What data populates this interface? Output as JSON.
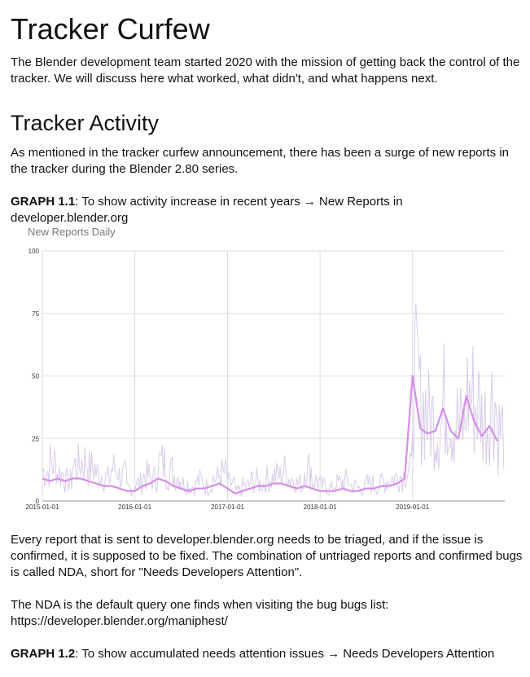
{
  "article": {
    "title": "Tracker Curfew",
    "intro": "The Blender development team started 2020 with the mission of getting back the control of the tracker. We will discuss here what worked, what didn't, and what happens next.",
    "section_title": "Tracker Activity",
    "section_intro": "As mentioned in the tracker curfew announcement, there has been a surge of new reports in the tracker during the Blender 2.80 series.",
    "graph1_label": "GRAPH 1.1",
    "graph1_caption": ": To show activity increase in recent years → New Reports in developer.blender.org",
    "para_triage": "Every report that is sent to developer.blender.org needs to be triaged, and if the issue is confirmed, it is supposed to be fixed. The combination of untriaged reports and confirmed bugs is called NDA, short for \"Needs Developers Attention\".",
    "para_nda_1": "The NDA is the default query one finds when visiting the bug bugs list:",
    "para_nda_2": "https://developer.blender.org/maniphest/",
    "graph2_label": "GRAPH 1.2",
    "graph2_caption": ": To show accumulated needs attention issues → Needs Developers Attention"
  },
  "chart_data": {
    "type": "line",
    "title": "New Reports Daily",
    "xlabel": "",
    "ylabel": "",
    "ylim": [
      0,
      100
    ],
    "xlim": [
      "2015-01-01",
      "2019-12-31"
    ],
    "y_ticks": [
      0,
      25,
      50,
      75,
      100
    ],
    "x_ticks": [
      "2015-01-01",
      "2016-01-01",
      "2017-01-01",
      "2018-01-01",
      "2019-01-01"
    ],
    "grid": true,
    "colors": {
      "raw": "#d8ccea",
      "smoothed": "#d58fe6",
      "grid": "#dddddd"
    },
    "series": [
      {
        "values_kind": "daily (noisy)",
        "x": [
          "2015-01-01",
          "2015-02-01",
          "2015-03-01",
          "2015-04-01",
          "2015-05-01",
          "2015-06-01",
          "2015-07-01",
          "2015-08-01",
          "2015-09-01",
          "2015-10-01",
          "2015-11-01",
          "2015-12-01",
          "2016-01-01",
          "2016-02-01",
          "2016-03-01",
          "2016-04-01",
          "2016-05-01",
          "2016-06-01",
          "2016-07-01",
          "2016-08-01",
          "2016-09-01",
          "2016-10-01",
          "2016-11-01",
          "2016-12-01",
          "2017-01-01",
          "2017-02-01",
          "2017-03-01",
          "2017-04-01",
          "2017-05-01",
          "2017-06-01",
          "2017-07-01",
          "2017-08-01",
          "2017-09-01",
          "2017-10-01",
          "2017-11-01",
          "2017-12-01",
          "2018-01-01",
          "2018-02-01",
          "2018-03-01",
          "2018-04-01",
          "2018-05-01",
          "2018-06-01",
          "2018-07-01",
          "2018-08-01",
          "2018-09-01",
          "2018-10-01",
          "2018-11-01",
          "2018-12-01",
          "2019-01-01",
          "2019-02-01",
          "2019-03-01",
          "2019-04-01",
          "2019-05-01",
          "2019-06-01",
          "2019-07-01",
          "2019-08-01",
          "2019-09-01",
          "2019-10-01",
          "2019-11-01",
          "2019-12-01"
        ],
        "values": [
          12,
          15,
          11,
          8,
          14,
          16,
          13,
          11,
          9,
          13,
          10,
          5,
          7,
          10,
          9,
          15,
          12,
          10,
          7,
          6,
          8,
          6,
          9,
          11,
          7,
          4,
          6,
          8,
          7,
          9,
          10,
          12,
          9,
          7,
          13,
          8,
          6,
          5,
          7,
          8,
          6,
          5,
          7,
          6,
          8,
          9,
          10,
          12,
          48,
          38,
          33,
          30,
          40,
          32,
          30,
          42,
          38,
          33,
          40,
          28
        ]
      },
      {
        "name": "",
        "values_kind": "smoothed",
        "x": [
          "2015-01-01",
          "2015-02-01",
          "2015-03-01",
          "2015-04-01",
          "2015-05-01",
          "2015-06-01",
          "2015-07-01",
          "2015-08-01",
          "2015-09-01",
          "2015-10-01",
          "2015-11-01",
          "2015-12-01",
          "2016-01-01",
          "2016-02-01",
          "2016-03-01",
          "2016-04-01",
          "2016-05-01",
          "2016-06-01",
          "2016-07-01",
          "2016-08-01",
          "2016-09-01",
          "2016-10-01",
          "2016-11-01",
          "2016-12-01",
          "2017-01-01",
          "2017-02-01",
          "2017-03-01",
          "2017-04-01",
          "2017-05-01",
          "2017-06-01",
          "2017-07-01",
          "2017-08-01",
          "2017-09-01",
          "2017-10-01",
          "2017-11-01",
          "2017-12-01",
          "2018-01-01",
          "2018-02-01",
          "2018-03-01",
          "2018-04-01",
          "2018-05-01",
          "2018-06-01",
          "2018-07-01",
          "2018-08-01",
          "2018-09-01",
          "2018-10-01",
          "2018-11-01",
          "2018-12-01",
          "2019-01-01",
          "2019-02-01",
          "2019-03-01",
          "2019-04-01",
          "2019-05-01",
          "2019-06-01",
          "2019-07-01",
          "2019-08-01",
          "2019-09-01",
          "2019-10-01",
          "2019-11-01",
          "2019-12-01"
        ],
        "values": [
          9,
          8,
          9,
          8,
          9,
          9,
          8,
          7,
          6,
          6,
          5,
          4,
          4,
          6,
          7,
          9,
          8,
          6,
          5,
          4,
          5,
          5,
          6,
          7,
          5,
          3,
          4,
          5,
          6,
          6,
          7,
          7,
          6,
          5,
          6,
          5,
          4,
          4,
          4,
          5,
          4,
          4,
          5,
          5,
          6,
          6,
          7,
          9,
          50,
          29,
          27,
          28,
          37,
          28,
          25,
          42,
          32,
          26,
          30,
          24
        ]
      }
    ]
  }
}
